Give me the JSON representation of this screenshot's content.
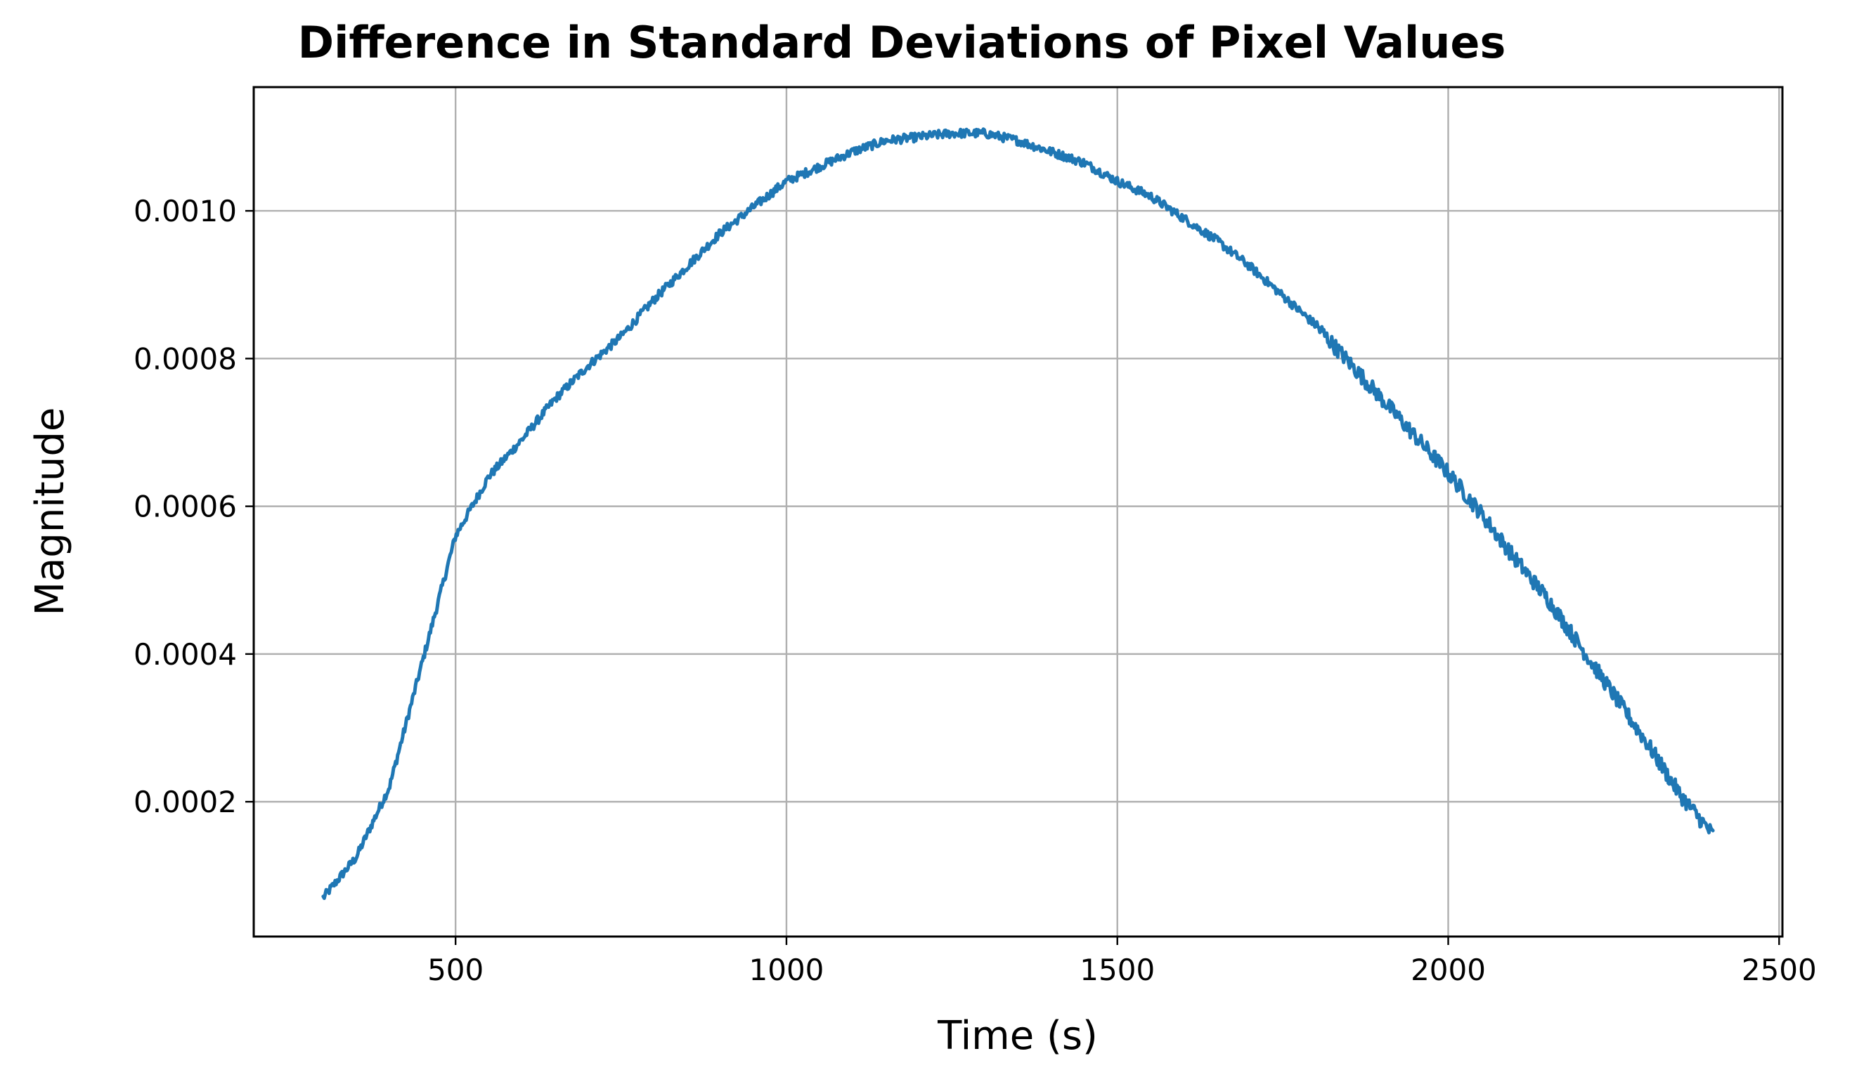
{
  "chart_data": {
    "type": "line",
    "title": "Difference in Standard Deviations of Pixel Values",
    "xlabel": "Time (s)",
    "ylabel": "Magnitude",
    "xlim": [
      195,
      2505
    ],
    "ylim": [
      1.75e-05,
      0.0011675
    ],
    "xticks": [
      500,
      1000,
      1500,
      2000,
      2500
    ],
    "xtick_labels": [
      "500",
      "1000",
      "1500",
      "2000",
      "2500"
    ],
    "yticks": [
      0.0002,
      0.0004,
      0.0006,
      0.0008,
      0.001
    ],
    "ytick_labels": [
      "0.0002",
      "0.0004",
      "0.0006",
      "0.0008",
      "0.0010"
    ],
    "grid": true,
    "legend": "none",
    "series": [
      {
        "color": "#1f77b4",
        "noise_amplitude": 6e-06,
        "x": [
          300,
          350,
          400,
          450,
          500,
          550,
          600,
          650,
          700,
          750,
          800,
          850,
          900,
          950,
          1000,
          1050,
          1100,
          1150,
          1200,
          1250,
          1300,
          1350,
          1400,
          1450,
          1500,
          1550,
          1600,
          1650,
          1700,
          1750,
          1800,
          1850,
          1900,
          1950,
          2000,
          2050,
          2100,
          2150,
          2200,
          2250,
          2300,
          2350,
          2400
        ],
        "y": [
          7e-05,
          0.000125,
          0.00022,
          0.00039,
          0.00056,
          0.00064,
          0.00069,
          0.000745,
          0.00079,
          0.00083,
          0.00088,
          0.000925,
          0.00097,
          0.001005,
          0.00104,
          0.00106,
          0.00108,
          0.001095,
          0.0011,
          0.001105,
          0.001105,
          0.001095,
          0.00108,
          0.001065,
          0.00104,
          0.00102,
          0.00099,
          0.00096,
          0.000925,
          0.000885,
          0.000845,
          0.000795,
          0.000745,
          0.000695,
          0.000645,
          0.00059,
          0.00053,
          0.000475,
          0.00041,
          0.000345,
          0.00028,
          0.00021,
          0.000155
        ]
      }
    ]
  }
}
